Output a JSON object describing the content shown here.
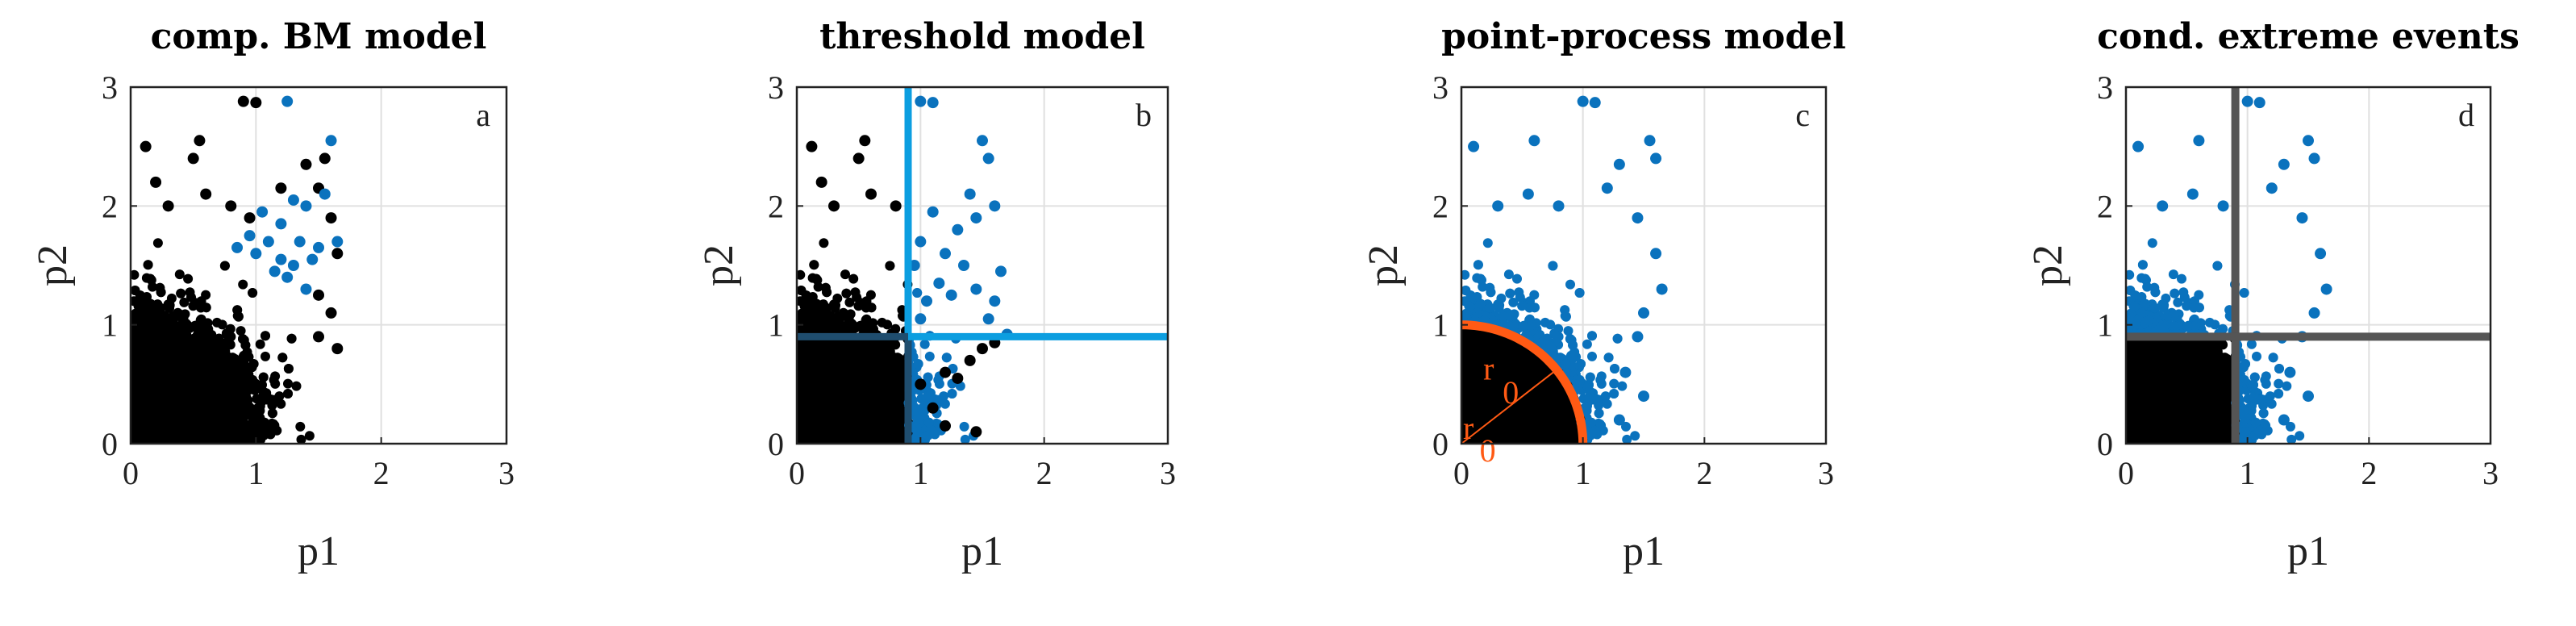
{
  "colors": {
    "black_points": "#000000",
    "blue_points": "#0a72bd",
    "threshold_line_b": "#0c9ee0",
    "threshold_line_b_dark": "#1f4d6e",
    "threshold_line_d": "#555555",
    "radius_arc": "#ff5a14",
    "grid": "#e0e0e0",
    "axes": "#222222"
  },
  "chart_data": [
    {
      "type": "scatter",
      "title": "comp. BM model",
      "corner_label": "a",
      "xlabel": "p1",
      "ylabel": "p2",
      "xlim": [
        0,
        3
      ],
      "ylim": [
        0,
        3
      ],
      "xticks": [
        "0",
        "1",
        "2",
        "3"
      ],
      "yticks": [
        "0",
        "1",
        "2",
        "3"
      ],
      "grid": true,
      "series": [
        {
          "color": "black",
          "points": [
            [
              0.12,
              2.5
            ],
            [
              0.2,
              2.2
            ],
            [
              0.5,
              2.4
            ],
            [
              0.55,
              2.55
            ],
            [
              0.9,
              2.88
            ],
            [
              1.0,
              2.87
            ],
            [
              1.4,
              2.35
            ],
            [
              1.5,
              2.15
            ],
            [
              1.55,
              2.4
            ],
            [
              1.6,
              1.9
            ],
            [
              1.65,
              1.6
            ],
            [
              1.2,
              2.15
            ],
            [
              1.5,
              1.25
            ],
            [
              0.3,
              2.0
            ],
            [
              0.6,
              2.1
            ],
            [
              0.8,
              2.0
            ],
            [
              0.95,
              1.9
            ],
            [
              1.6,
              1.1
            ],
            [
              1.65,
              0.8
            ],
            [
              1.5,
              0.9
            ]
          ]
        },
        {
          "color": "blue",
          "points": [
            [
              1.25,
              2.88
            ],
            [
              1.6,
              2.55
            ],
            [
              1.05,
              1.95
            ],
            [
              1.1,
              1.7
            ],
            [
              1.2,
              1.85
            ],
            [
              1.3,
              1.5
            ],
            [
              1.35,
              1.7
            ],
            [
              1.4,
              2.0
            ],
            [
              1.45,
              1.55
            ],
            [
              1.55,
              2.1
            ],
            [
              1.65,
              1.7
            ],
            [
              1.15,
              1.45
            ],
            [
              1.25,
              1.4
            ],
            [
              1.4,
              1.3
            ],
            [
              1.0,
              1.6
            ],
            [
              0.85,
              1.65
            ],
            [
              0.95,
              1.75
            ],
            [
              1.3,
              2.05
            ],
            [
              1.2,
              1.55
            ],
            [
              1.5,
              1.65
            ]
          ]
        }
      ]
    },
    {
      "type": "scatter",
      "title": "threshold model",
      "corner_label": "b",
      "xlabel": "p1",
      "ylabel": "p2",
      "xlim": [
        0,
        3
      ],
      "ylim": [
        0,
        3
      ],
      "xticks": [
        "0",
        "1",
        "2",
        "3"
      ],
      "yticks": [
        "0",
        "1",
        "2",
        "3"
      ],
      "grid": true,
      "threshold": {
        "p1": 0.9,
        "p2": 0.9
      },
      "series": [
        {
          "color": "black",
          "points": [
            [
              0.12,
              2.5
            ],
            [
              0.2,
              2.2
            ],
            [
              0.5,
              2.4
            ],
            [
              0.55,
              2.55
            ],
            [
              0.3,
              2.0
            ],
            [
              0.6,
              2.1
            ],
            [
              0.8,
              2.0
            ],
            [
              1.5,
              0.8
            ],
            [
              1.3,
              0.55
            ],
            [
              1.6,
              0.85
            ],
            [
              1.2,
              0.6
            ],
            [
              1.4,
              0.7
            ],
            [
              1.0,
              0.5
            ],
            [
              1.1,
              0.3
            ],
            [
              1.45,
              0.1
            ],
            [
              1.2,
              0.15
            ]
          ]
        },
        {
          "color": "blue",
          "points": [
            [
              1.0,
              2.88
            ],
            [
              1.1,
              2.87
            ],
            [
              1.5,
              2.55
            ],
            [
              1.55,
              2.4
            ],
            [
              1.6,
              2.0
            ],
            [
              1.45,
              1.9
            ],
            [
              1.4,
              2.1
            ],
            [
              1.3,
              1.8
            ],
            [
              1.2,
              1.6
            ],
            [
              1.1,
              1.95
            ],
            [
              1.0,
              1.7
            ],
            [
              1.65,
              1.45
            ],
            [
              1.6,
              1.2
            ],
            [
              1.55,
              1.05
            ],
            [
              1.45,
              1.3
            ],
            [
              1.35,
              1.5
            ],
            [
              1.25,
              1.25
            ],
            [
              1.15,
              1.35
            ],
            [
              1.05,
              1.2
            ],
            [
              0.95,
              1.5
            ],
            [
              1.7,
              0.92
            ],
            [
              1.0,
              1.05
            ]
          ]
        }
      ]
    },
    {
      "type": "scatter",
      "title": "point-process model",
      "corner_label": "c",
      "xlabel": "p1",
      "ylabel": "p2",
      "xlim": [
        0,
        3
      ],
      "ylim": [
        0,
        3
      ],
      "xticks": [
        "0",
        "1",
        "2",
        "3"
      ],
      "yticks": [
        "0",
        "1",
        "2",
        "3"
      ],
      "grid": true,
      "radius_labels": [
        "r",
        "0",
        "r",
        "0"
      ],
      "series": [
        {
          "color": "blue",
          "points": [
            [
              0.1,
              2.5
            ],
            [
              0.6,
              2.55
            ],
            [
              1.0,
              2.88
            ],
            [
              1.1,
              2.87
            ],
            [
              1.55,
              2.55
            ],
            [
              1.6,
              2.4
            ],
            [
              1.3,
              2.35
            ],
            [
              1.2,
              2.15
            ],
            [
              0.3,
              2.0
            ],
            [
              0.55,
              2.1
            ],
            [
              0.8,
              2.0
            ],
            [
              1.45,
              1.9
            ],
            [
              1.6,
              1.6
            ],
            [
              1.65,
              1.3
            ],
            [
              1.5,
              1.1
            ],
            [
              1.45,
              0.9
            ],
            [
              1.35,
              0.6
            ],
            [
              1.5,
              0.4
            ],
            [
              1.1,
              0.1
            ],
            [
              1.3,
              0.2
            ]
          ]
        },
        {
          "color": "black",
          "points": []
        }
      ]
    },
    {
      "type": "scatter",
      "title": "cond. extreme events",
      "corner_label": "d",
      "xlabel": "p1",
      "ylabel": "p2",
      "xlim": [
        0,
        3
      ],
      "ylim": [
        0,
        3
      ],
      "xticks": [
        "0",
        "1",
        "2",
        "3"
      ],
      "yticks": [
        "0",
        "1",
        "2",
        "3"
      ],
      "grid": true,
      "threshold": {
        "p1": 0.9,
        "p2": 0.9
      },
      "series": [
        {
          "color": "blue",
          "points": [
            [
              0.1,
              2.5
            ],
            [
              0.6,
              2.55
            ],
            [
              1.0,
              2.88
            ],
            [
              1.1,
              2.87
            ],
            [
              1.5,
              2.55
            ],
            [
              1.55,
              2.4
            ],
            [
              1.3,
              2.35
            ],
            [
              1.2,
              2.15
            ],
            [
              0.3,
              2.0
            ],
            [
              0.55,
              2.1
            ],
            [
              0.8,
              2.0
            ],
            [
              1.45,
              1.9
            ],
            [
              1.6,
              1.6
            ],
            [
              1.65,
              1.3
            ],
            [
              1.55,
              1.1
            ],
            [
              1.45,
              0.9
            ],
            [
              1.35,
              0.6
            ],
            [
              1.5,
              0.4
            ],
            [
              1.1,
              0.1
            ],
            [
              1.3,
              0.2
            ]
          ]
        },
        {
          "color": "black",
          "points": []
        }
      ]
    }
  ]
}
